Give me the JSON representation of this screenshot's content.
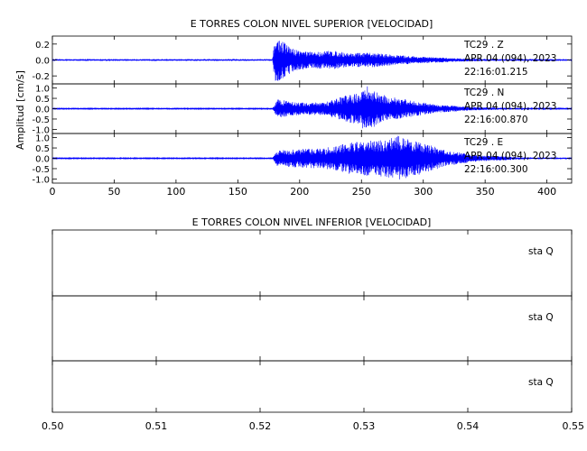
{
  "chart_data": [
    {
      "type": "line",
      "title": "E TORRES COLON NIVEL SUPERIOR [VELOCIDAD]",
      "ylabel": "Amplitud [cm/s]",
      "xlim": [
        0,
        420
      ],
      "x_ticks": [
        0,
        50,
        100,
        150,
        200,
        250,
        300,
        350,
        400
      ],
      "x_tick_labels": [
        "0",
        "50",
        "100",
        "150",
        "200",
        "250",
        "300",
        "350",
        "400"
      ],
      "color": "#0000ff",
      "traces": [
        {
          "channel": "TC29 . Z",
          "date": "APR 04 (094), 2023",
          "time": "22:16:01.215",
          "ylim": [
            -0.3,
            0.3
          ],
          "y_ticks": [
            -0.2,
            0.0,
            0.2
          ],
          "y_tick_labels": [
            "-0.2",
            "0.0",
            "0.2"
          ],
          "envelope": [
            [
              0,
              0.01
            ],
            [
              178,
              0.01
            ],
            [
              180,
              0.28
            ],
            [
              185,
              0.25
            ],
            [
              195,
              0.14
            ],
            [
              210,
              0.1
            ],
            [
              225,
              0.12
            ],
            [
              240,
              0.09
            ],
            [
              260,
              0.09
            ],
            [
              280,
              0.06
            ],
            [
              300,
              0.04
            ],
            [
              330,
              0.02
            ],
            [
              360,
              0.01
            ],
            [
              420,
              0.01
            ]
          ]
        },
        {
          "channel": "TC29 . N",
          "date": "APR 04 (094), 2023",
          "time": "22:16:00.870",
          "ylim": [
            -1.2,
            1.2
          ],
          "y_ticks": [
            -1.0,
            -0.5,
            0.0,
            0.5,
            1.0
          ],
          "y_tick_labels": [
            "-1.0",
            "-0.5",
            "0.0",
            "0.5",
            "1.0"
          ],
          "envelope": [
            [
              0,
              0.02
            ],
            [
              178,
              0.02
            ],
            [
              182,
              0.45
            ],
            [
              200,
              0.3
            ],
            [
              220,
              0.3
            ],
            [
              235,
              0.6
            ],
            [
              245,
              0.75
            ],
            [
              255,
              1.1
            ],
            [
              262,
              0.8
            ],
            [
              272,
              0.6
            ],
            [
              290,
              0.4
            ],
            [
              310,
              0.2
            ],
            [
              340,
              0.08
            ],
            [
              380,
              0.03
            ],
            [
              420,
              0.02
            ]
          ]
        },
        {
          "channel": "TC29 . E",
          "date": "APR 04 (094), 2023",
          "time": "22:16:00.300",
          "ylim": [
            -1.2,
            1.2
          ],
          "y_ticks": [
            -1.0,
            -0.5,
            0.0,
            0.5,
            1.0
          ],
          "y_tick_labels": [
            "-1.0",
            "-0.5",
            "0.0",
            "0.5",
            "1.0"
          ],
          "envelope": [
            [
              0,
              0.02
            ],
            [
              178,
              0.02
            ],
            [
              182,
              0.4
            ],
            [
              200,
              0.45
            ],
            [
              220,
              0.5
            ],
            [
              240,
              0.75
            ],
            [
              255,
              0.85
            ],
            [
              270,
              0.9
            ],
            [
              280,
              1.1
            ],
            [
              290,
              0.9
            ],
            [
              305,
              0.65
            ],
            [
              320,
              0.35
            ],
            [
              345,
              0.15
            ],
            [
              380,
              0.05
            ],
            [
              420,
              0.03
            ]
          ]
        }
      ]
    },
    {
      "type": "line",
      "title": "E TORRES COLON NIVEL INFERIOR [VELOCIDAD]",
      "xlim": [
        0.5,
        0.55
      ],
      "x_ticks": [
        0.5,
        0.51,
        0.52,
        0.53,
        0.54,
        0.55
      ],
      "x_tick_labels": [
        "0.50",
        "0.51",
        "0.52",
        "0.53",
        "0.54",
        "0.55"
      ],
      "panels": [
        {
          "label": "sta  Q"
        },
        {
          "label": "sta  Q"
        },
        {
          "label": "sta  Q"
        }
      ]
    }
  ]
}
